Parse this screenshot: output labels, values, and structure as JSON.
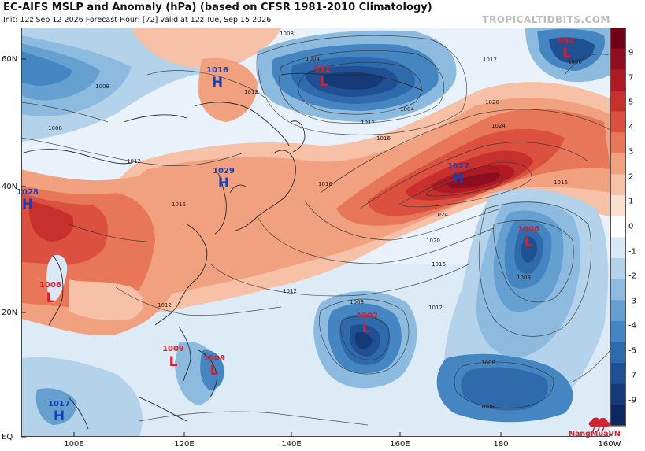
{
  "header": {
    "title": "EC-AIFS MSLP and Anomaly (hPa) (based on CFSR 1981-2010 Climatology)",
    "subtitle": "Init: 12z Sep 12 2026   Forecast Hour: [72]   valid at 12z Tue, Sep 15 2026",
    "watermark": "TROPICALTIDBITS.COM"
  },
  "axes": {
    "lat_labels": [
      "60N",
      "40N",
      "20N",
      "EQ"
    ],
    "lon_labels": [
      "100E",
      "120E",
      "140E",
      "160E",
      "180",
      "160W"
    ]
  },
  "colorbar": {
    "labels": [
      "9",
      "7",
      "5",
      "4",
      "3",
      "2",
      "1",
      "0",
      "-1",
      "-2",
      "-3",
      "-4",
      "-5",
      "-7",
      "-9"
    ],
    "warm": [
      "#fbe0d2",
      "#f6c1a6",
      "#f1a17f",
      "#e8775a",
      "#dc5040",
      "#c8302e",
      "#ad1a24",
      "#8f0d1f",
      "#6e0017"
    ],
    "cool": [
      "#d8e8f5",
      "#b4d2ea",
      "#8dbbe0",
      "#65a0d1",
      "#4485c2",
      "#2f6aad",
      "#1f5093",
      "#163a78",
      "#0e275e"
    ]
  },
  "pressure_centers": [
    {
      "type": "H",
      "value": "1016"
    },
    {
      "type": "H",
      "value": "1029"
    },
    {
      "type": "H",
      "value": "1028"
    },
    {
      "type": "H",
      "value": "1027"
    },
    {
      "type": "H",
      "value": "1017"
    },
    {
      "type": "L",
      "value": "991"
    },
    {
      "type": "L",
      "value": "992"
    },
    {
      "type": "L",
      "value": "1006"
    },
    {
      "type": "L",
      "value": "1002"
    },
    {
      "type": "L",
      "value": "1006"
    },
    {
      "type": "L",
      "value": "1009"
    },
    {
      "type": "L",
      "value": "1009"
    }
  ],
  "isobar_labels": [
    "1008",
    "1004",
    "1012",
    "1012",
    "1016",
    "1016",
    "1020",
    "1024",
    "1024",
    "1020",
    "1016",
    "1012",
    "1008",
    "1008",
    "1008",
    "1008",
    "1012",
    "1016",
    "1012",
    "1008",
    "1004",
    "1000",
    "1012",
    "1008",
    "1016",
    "1012"
  ],
  "logo_text": "NangMuaVN"
}
